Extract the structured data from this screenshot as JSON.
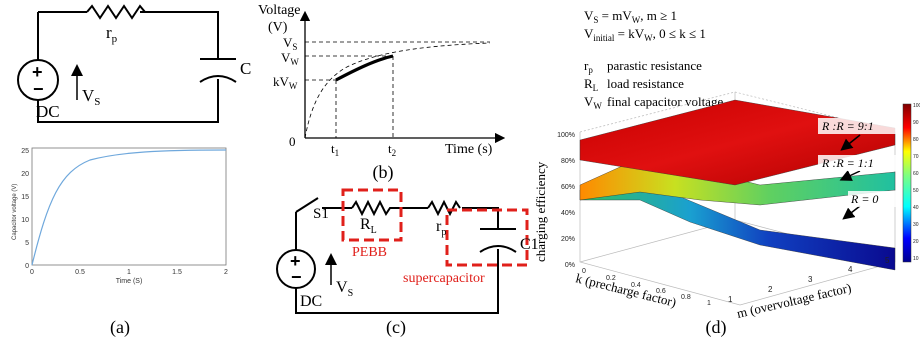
{
  "panel_a": {
    "label": "(a)",
    "circuit": {
      "resistor": "r",
      "resistor_sub": "p",
      "capacitor": "C",
      "source": "DC",
      "voltage": "V",
      "voltage_sub": "S",
      "plus": "+",
      "minus": "−"
    },
    "plot": {
      "ylabel": "Capacitor voltage (V)",
      "xlabel": "Time (S)",
      "xticks": [
        "0",
        "0.5",
        "1",
        "1.5",
        "2"
      ],
      "yticks": [
        "0",
        "5",
        "10",
        "15",
        "20",
        "25"
      ]
    }
  },
  "panel_b": {
    "label": "(b)",
    "ylabel_line1": "Voltage",
    "ylabel_line2": "(V)",
    "xlabel": "Time (s)",
    "origin": "0",
    "vs": "V",
    "vs_sub": "S",
    "vw": "V",
    "vw_sub": "W",
    "kvw": "kV",
    "kvw_sub": "W",
    "t1": "t",
    "t1_sub": "1",
    "t2": "t",
    "t2_sub": "2"
  },
  "panel_c": {
    "label": "(c)",
    "switch": "S1",
    "rl": "R",
    "rl_sub": "L",
    "rp": "r",
    "rp_sub": "p",
    "cap": "C1",
    "source": "DC",
    "voltage": "V",
    "voltage_sub": "S",
    "pebb": "PEBB",
    "supercap": "supercapacitor",
    "plus": "+",
    "minus": "−",
    "accent": "#e0201b"
  },
  "panel_d": {
    "label": "(d)",
    "eq1": "V = mV , m ≥ 1",
    "eq2": "V = kV , 0 ≤ k ≤ 1",
    "legend": [
      {
        "sym": "r",
        "sub": "p",
        "text": "parastic resistance"
      },
      {
        "sym": "R",
        "sub": "L",
        "text": "load resistance"
      },
      {
        "sym": "V",
        "sub": "W",
        "text": "final capacitor voltage"
      }
    ],
    "zlabel": "charging efficiency",
    "zticks": [
      "100%",
      "80%",
      "60%",
      "40%",
      "20%",
      "0%"
    ],
    "xlabel": "k (precharge factor)",
    "xticks": [
      "0",
      "0.2",
      "0.4",
      "0.6",
      "0.8",
      "1"
    ],
    "ylabel": "m (overvoltage factor)",
    "yticks": [
      "1",
      "2",
      "3",
      "4",
      "5"
    ],
    "annotations": [
      "R :R = 9:1",
      "R :R = 1:1",
      "R = 0"
    ],
    "colorbar_ticks": [
      "100",
      "90",
      "80",
      "70",
      "60",
      "50",
      "40",
      "30",
      "20",
      "10"
    ]
  }
}
